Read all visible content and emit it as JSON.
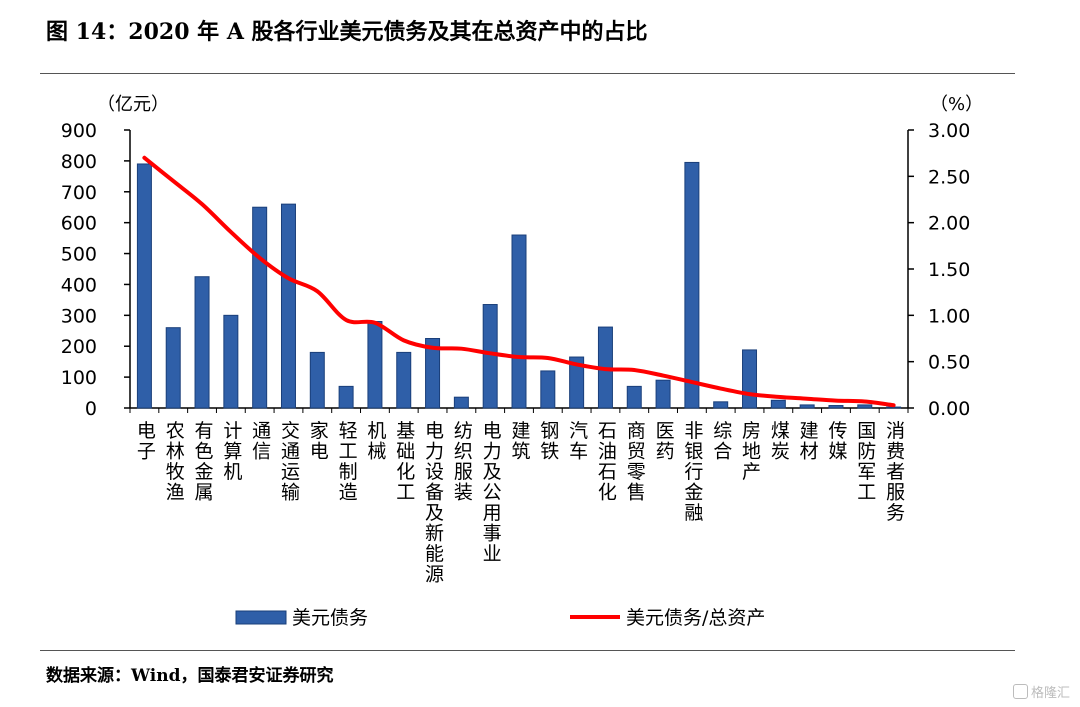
{
  "figure": {
    "title": "图 14：2020 年 A 股各行业美元债务及其在总资产中的占比",
    "source": "数据来源：Wind，国泰君安证券研究",
    "watermark": "格隆汇"
  },
  "colors": {
    "bar_fill": "#2f5fa8",
    "bar_stroke": "#1a3f7a",
    "line": "#ff0000",
    "axis": "#000000"
  },
  "chart_data": {
    "type": "bar",
    "title": "",
    "xlabel": "",
    "categories": [
      "电子",
      "农林牧渔",
      "有色金属",
      "计算机",
      "通信",
      "交通运输",
      "家电",
      "轻工制造",
      "机械",
      "基础化工",
      "电力设备及新能源",
      "纺织服装",
      "电力及公用事业",
      "建筑",
      "钢铁",
      "汽车",
      "石油石化",
      "商贸零售",
      "医药",
      "非银行金融",
      "综合",
      "房地产",
      "煤炭",
      "建材",
      "传媒",
      "国防军工",
      "消费者服务"
    ],
    "series": [
      {
        "name": "美元债务",
        "type": "bar",
        "axis": "left",
        "values": [
          790,
          260,
          425,
          300,
          650,
          660,
          180,
          70,
          280,
          180,
          225,
          35,
          335,
          560,
          120,
          165,
          262,
          70,
          90,
          795,
          20,
          188,
          25,
          10,
          8,
          10,
          3
        ]
      },
      {
        "name": "美元债务/总资产",
        "type": "line",
        "axis": "right",
        "values": [
          2.7,
          2.45,
          2.2,
          1.9,
          1.62,
          1.4,
          1.26,
          0.95,
          0.92,
          0.73,
          0.65,
          0.64,
          0.59,
          0.55,
          0.54,
          0.47,
          0.42,
          0.41,
          0.35,
          0.28,
          0.21,
          0.15,
          0.12,
          0.1,
          0.08,
          0.07,
          0.03
        ]
      }
    ],
    "left_axis": {
      "label": "（亿元）",
      "ylim": [
        0,
        900
      ],
      "ticks": [
        "0",
        "100",
        "200",
        "300",
        "400",
        "500",
        "600",
        "700",
        "800",
        "900"
      ]
    },
    "right_axis": {
      "label": "（%）",
      "ylim": [
        0,
        3.0
      ],
      "ticks": [
        "0.00",
        "0.50",
        "1.00",
        "1.50",
        "2.00",
        "2.50",
        "3.00"
      ]
    },
    "legend": {
      "position": "bottom",
      "bar_label": "美元债务",
      "line_label": "美元债务/总资产"
    },
    "grid": false
  }
}
